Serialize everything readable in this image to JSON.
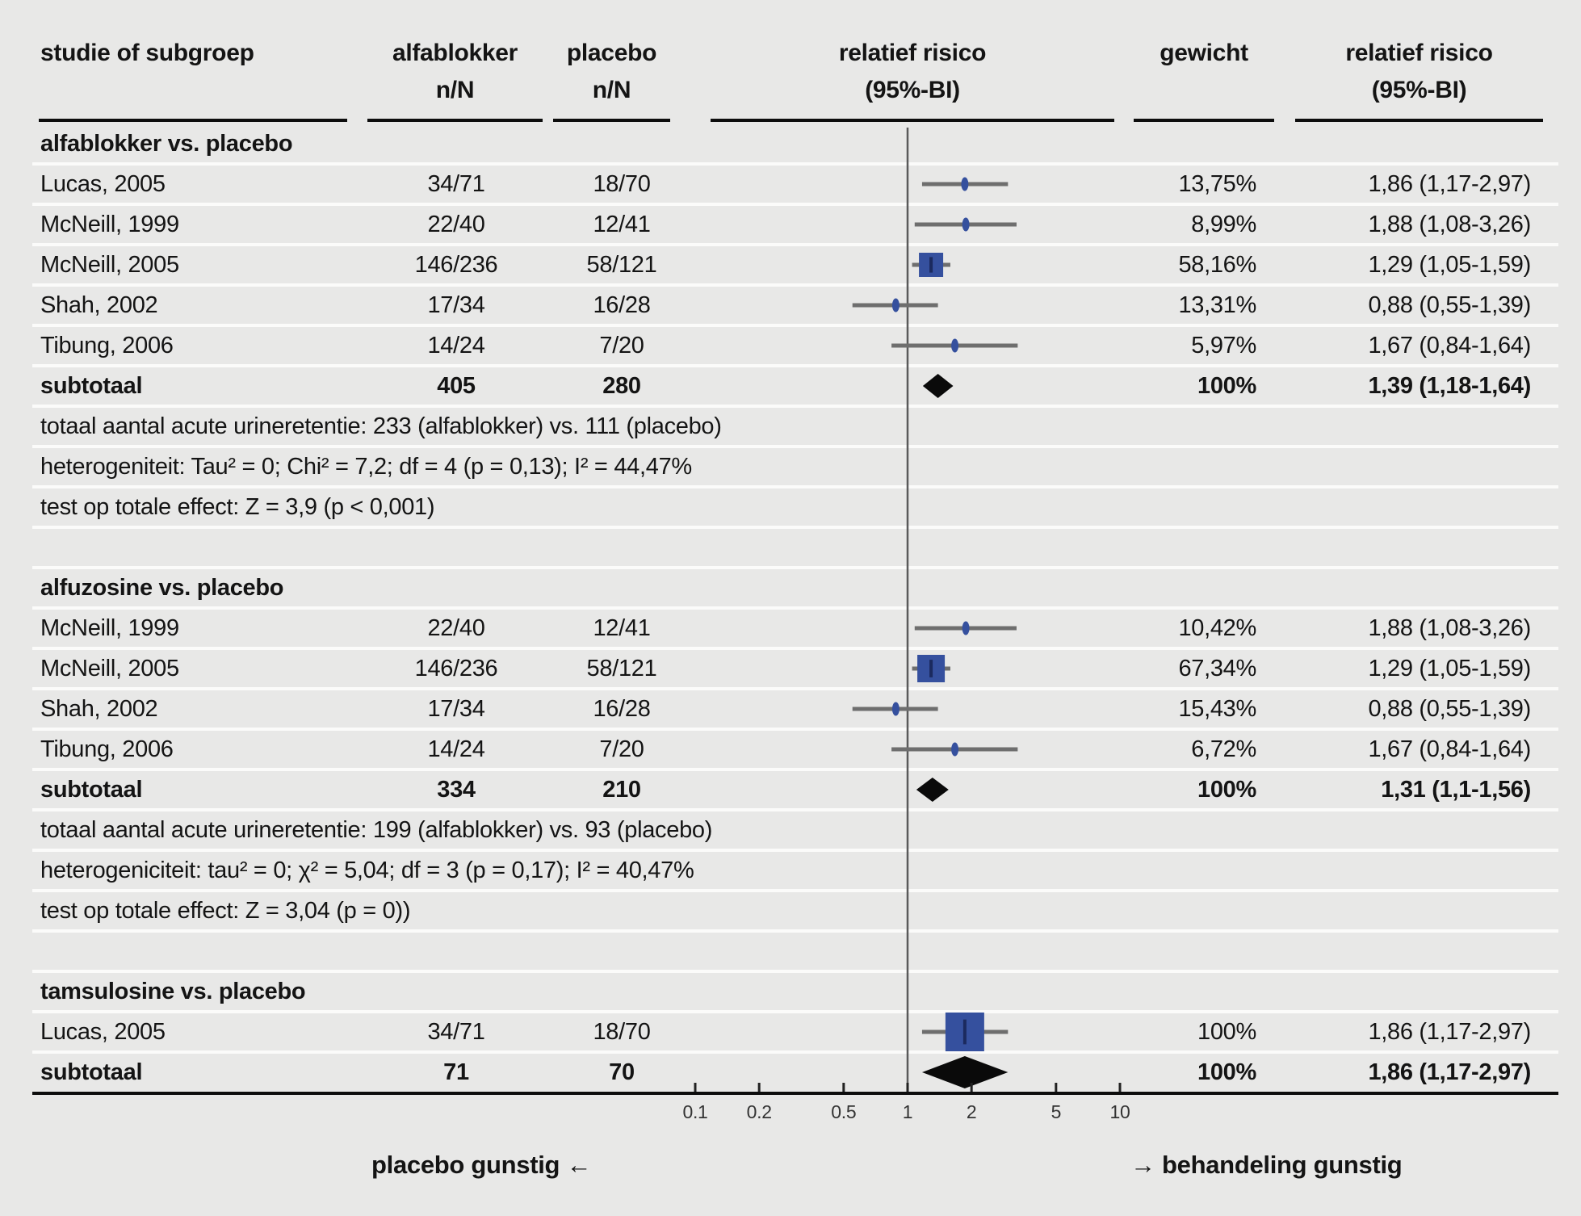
{
  "header": {
    "columns": [
      {
        "line1": "studie of subgroep",
        "line2": ""
      },
      {
        "line1": "alfablokker",
        "line2": "n/N"
      },
      {
        "line1": "placebo",
        "line2": "n/N"
      },
      {
        "line1": "relatief risico",
        "line2": "(95%-BI)"
      },
      {
        "line1": "gewicht",
        "line2": ""
      },
      {
        "line1": "relatief risico",
        "line2": "(95%-BI)"
      }
    ]
  },
  "footer": {
    "left_text": "placebo gunstig",
    "left_arrow": "←",
    "right_arrow": "→",
    "right_text": "behandeling gunstig"
  },
  "chart_data": {
    "type": "forest",
    "scale": "log",
    "x_axis": {
      "ticks": [
        {
          "v": 0.1,
          "label": "0.1"
        },
        {
          "v": 0.2,
          "label": "0.2"
        },
        {
          "v": 0.5,
          "label": "0.5"
        },
        {
          "v": 1,
          "label": "1"
        },
        {
          "v": 2,
          "label": "2"
        },
        {
          "v": 5,
          "label": "5"
        },
        {
          "v": 10,
          "label": "10"
        }
      ],
      "ref_line": 1
    },
    "colors": {
      "square": "#35509e",
      "square_tick": "#1b2a5e",
      "whisker": "#6e6e6e",
      "ref_line": "#5a5a5a",
      "diamond": "#0a0a0a"
    },
    "groups": [
      {
        "label": "alfablokker vs. placebo",
        "studies": [
          {
            "study": "Lucas, 2005",
            "treated": "34/71",
            "placebo": "18/70",
            "weight": "13,75%",
            "rr_text": "1,86 (1,17-2,97)",
            "rr": 1.86,
            "ci_low": 1.17,
            "ci_high": 2.97,
            "marker": "point"
          },
          {
            "study": "McNeill, 1999",
            "treated": "22/40",
            "placebo": "12/41",
            "weight": "8,99%",
            "rr_text": "1,88 (1,08-3,26)",
            "rr": 1.88,
            "ci_low": 1.08,
            "ci_high": 3.26,
            "marker": "point"
          },
          {
            "study": "McNeill, 2005",
            "treated": "146/236",
            "placebo": "58/121",
            "weight": "58,16%",
            "rr_text": "1,29 (1,05-1,59)",
            "rr": 1.29,
            "ci_low": 1.05,
            "ci_high": 1.59,
            "marker": "square",
            "marker_size": 30
          },
          {
            "study": "Shah, 2002",
            "treated": "17/34",
            "placebo": "16/28",
            "weight": "13,31%",
            "rr_text": "0,88 (0,55-1,39)",
            "rr": 0.88,
            "ci_low": 0.55,
            "ci_high": 1.39,
            "marker": "point"
          },
          {
            "study": "Tibung, 2006",
            "treated": "14/24",
            "placebo": "7/20",
            "weight": "5,97%",
            "rr_text": "1,67 (0,84-1,64)",
            "rr": 1.67,
            "ci_low": 0.84,
            "ci_high": 1.64,
            "ci_high_plot": 3.3,
            "marker": "point"
          }
        ],
        "subtotal": {
          "study": "subtotaal",
          "treated": "405",
          "placebo": "280",
          "weight": "100%",
          "rr_text": "1,39 (1,18-1,64)",
          "rr": 1.39,
          "ci_low": 1.18,
          "ci_high": 1.64,
          "diamond_h": 30
        },
        "notes": [
          "totaal aantal acute urineretentie: 233 (alfablokker) vs. 111 (placebo)",
          "heterogeniteit: Tau² = 0; Chi² = 7,2; df = 4 (p = 0,13); I² = 44,47%",
          "test op totale effect: Z = 3,9 (p < 0,001)"
        ],
        "spacer_after": true
      },
      {
        "label": "alfuzosine vs. placebo",
        "studies": [
          {
            "study": "McNeill, 1999",
            "treated": "22/40",
            "placebo": "12/41",
            "weight": "10,42%",
            "rr_text": "1,88 (1,08-3,26)",
            "rr": 1.88,
            "ci_low": 1.08,
            "ci_high": 3.26,
            "marker": "point"
          },
          {
            "study": "McNeill, 2005",
            "treated": "146/236",
            "placebo": "58/121",
            "weight": "67,34%",
            "rr_text": "1,29 (1,05-1,59)",
            "rr": 1.29,
            "ci_low": 1.05,
            "ci_high": 1.59,
            "marker": "square",
            "marker_size": 34
          },
          {
            "study": "Shah, 2002",
            "treated": "17/34",
            "placebo": "16/28",
            "weight": "15,43%",
            "rr_text": "0,88 (0,55-1,39)",
            "rr": 0.88,
            "ci_low": 0.55,
            "ci_high": 1.39,
            "marker": "point"
          },
          {
            "study": "Tibung, 2006",
            "treated": "14/24",
            "placebo": "7/20",
            "weight": "6,72%",
            "rr_text": "1,67 (0,84-1,64)",
            "rr": 1.67,
            "ci_low": 0.84,
            "ci_high": 1.64,
            "ci_high_plot": 3.3,
            "marker": "point"
          }
        ],
        "subtotal": {
          "study": "subtotaal",
          "treated": "334",
          "placebo": "210",
          "weight": "100%",
          "rr_text": "1,31 (1,1-1,56)",
          "rr": 1.31,
          "ci_low": 1.1,
          "ci_high": 1.56,
          "diamond_h": 30
        },
        "notes": [
          "totaal aantal acute urineretentie: 199 (alfablokker) vs. 93 (placebo)",
          "heterogeniciteit: tau² = 0; χ² = 5,04; df = 3 (p = 0,17); I² = 40,47%",
          "test op totale effect: Z = 3,04 (p = 0))"
        ],
        "spacer_after": true
      },
      {
        "label": "tamsulosine vs. placebo",
        "studies": [
          {
            "study": "Lucas, 2005",
            "treated": "34/71",
            "placebo": "18/70",
            "weight": "100%",
            "rr_text": "1,86 (1,17-2,97)",
            "rr": 1.86,
            "ci_low": 1.17,
            "ci_high": 2.97,
            "marker": "square",
            "marker_size": 48
          }
        ],
        "subtotal": {
          "study": "subtotaal",
          "treated": "71",
          "placebo": "70",
          "weight": "100%",
          "rr_text": "1,86 (1,17-2,97)",
          "rr": 1.86,
          "ci_low": 1.17,
          "ci_high": 2.97,
          "diamond_h": 40
        },
        "notes": [],
        "spacer_after": false
      }
    ]
  }
}
